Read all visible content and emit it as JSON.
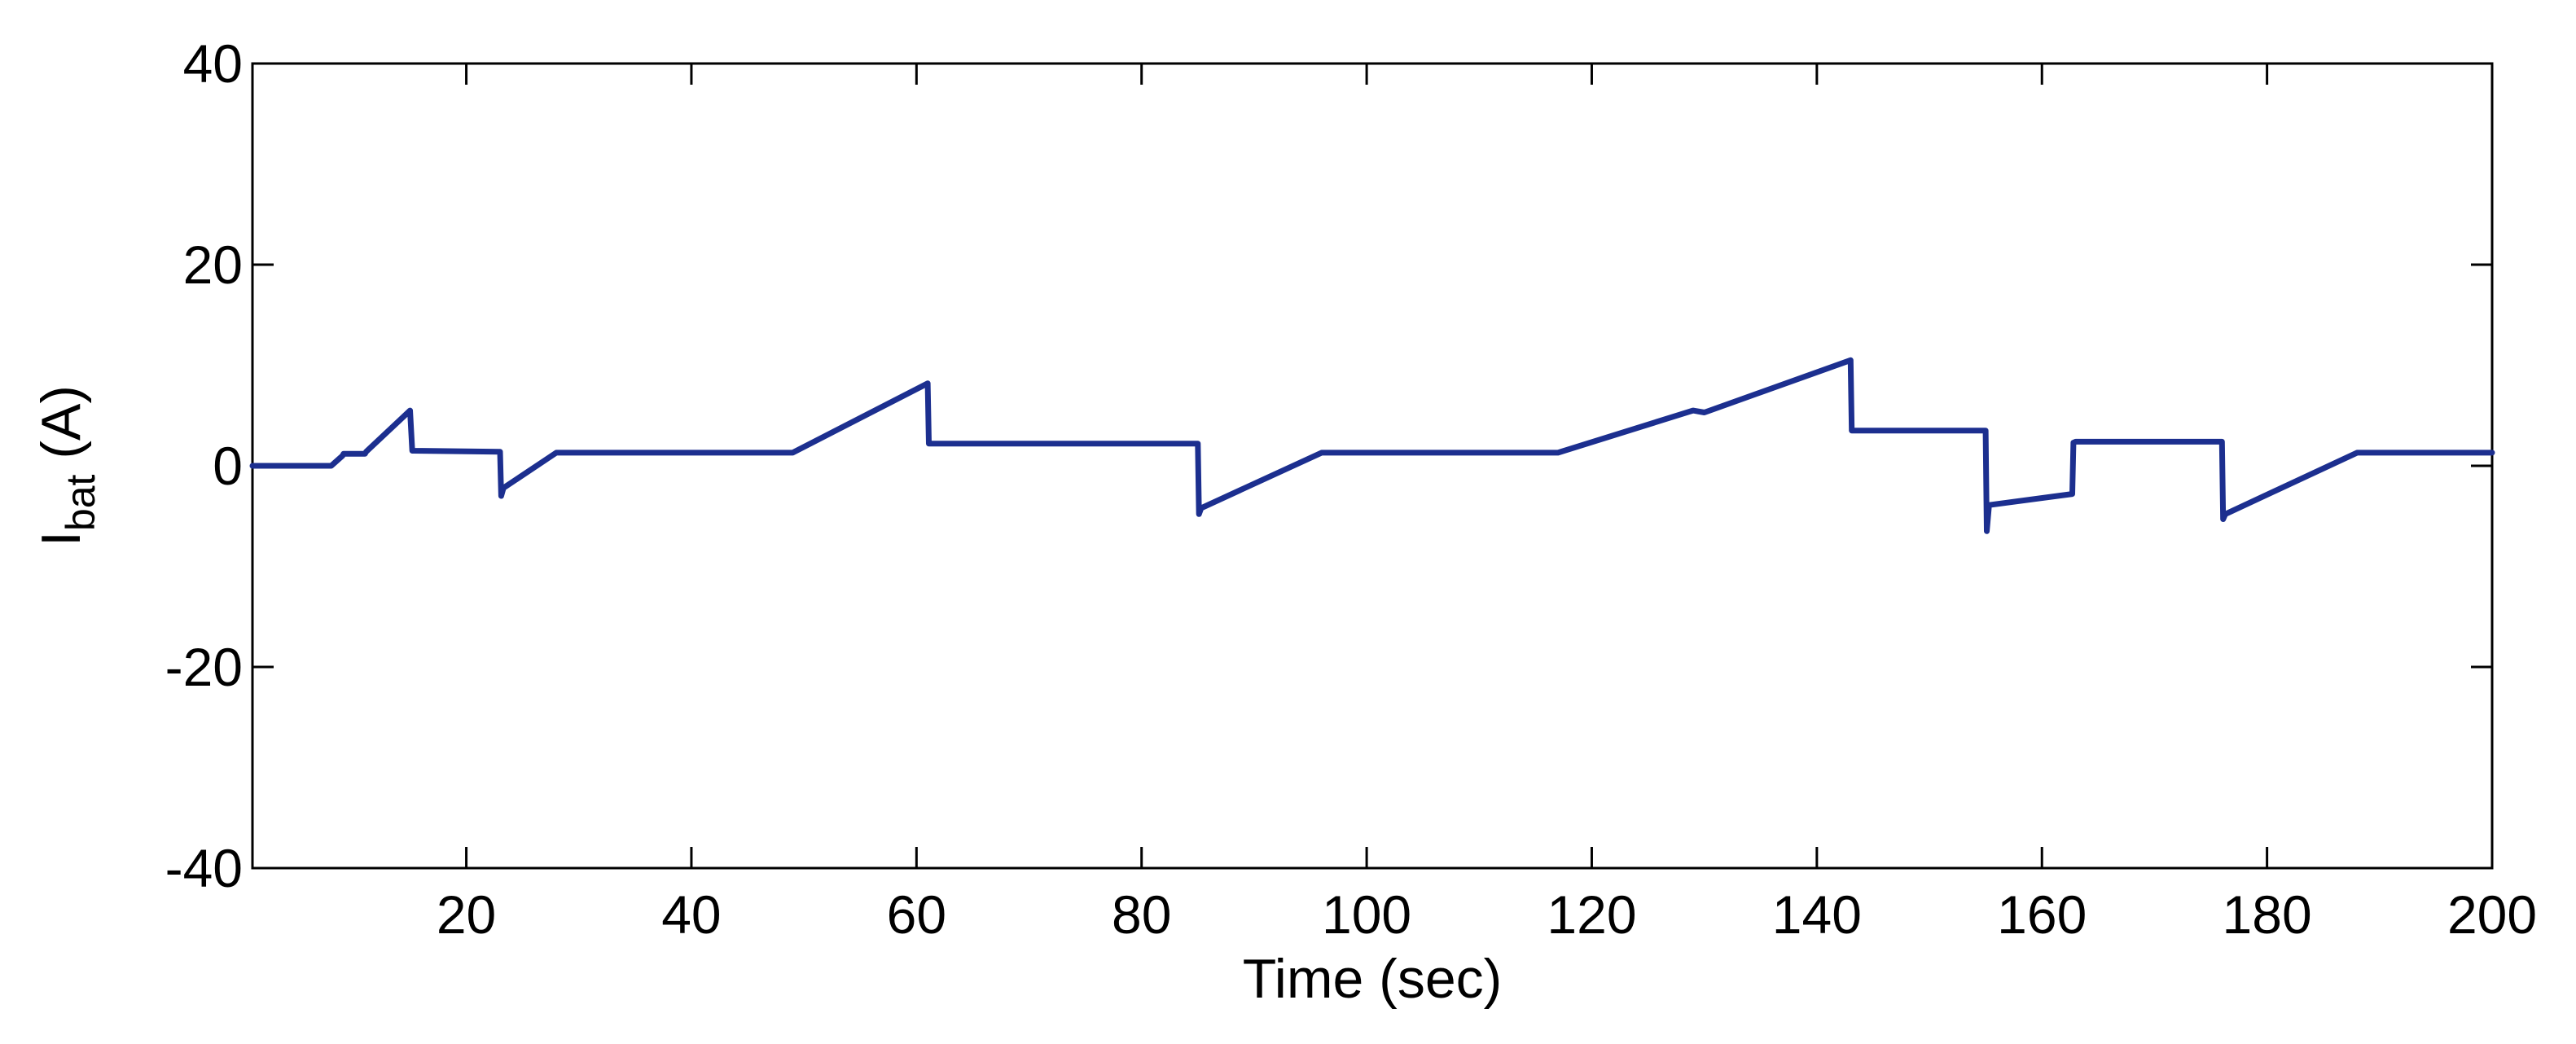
{
  "chart_data": {
    "type": "line",
    "title": "",
    "xlabel": "Time (sec)",
    "ylabel": {
      "main": "I",
      "subscript": "bat",
      "suffix": " (A)"
    },
    "xlim": [
      1,
      200
    ],
    "ylim": [
      -40,
      40
    ],
    "xticks": [
      20,
      40,
      60,
      80,
      100,
      120,
      140,
      160,
      180,
      200
    ],
    "yticks": [
      -40,
      -20,
      0,
      20,
      40
    ],
    "grid": false,
    "box": true,
    "line_color": "#1c2f8f",
    "series": [
      {
        "x": [
          1,
          8,
          9,
          9.1,
          11,
          11.1,
          15,
          15.2,
          23,
          23.1,
          23.3,
          28,
          49,
          61,
          61.1,
          85,
          85.1,
          85.3,
          96,
          117,
          129,
          130,
          143,
          143.1,
          155,
          155.1,
          155.3,
          162.7,
          162.8,
          163,
          176,
          176.1,
          176.3,
          188,
          200
        ],
        "y": [
          0,
          0,
          1,
          1.2,
          1.2,
          1.4,
          5.5,
          1.5,
          1.4,
          -3,
          -2.2,
          1.3,
          1.3,
          8.2,
          2.2,
          2.2,
          -4.8,
          -4.2,
          1.3,
          1.3,
          5.5,
          5.3,
          10.5,
          3.5,
          3.5,
          -6.5,
          -3.9,
          -2.8,
          2.3,
          2.4,
          2.4,
          -5.3,
          -4.8,
          1.3,
          1.3
        ]
      }
    ]
  }
}
